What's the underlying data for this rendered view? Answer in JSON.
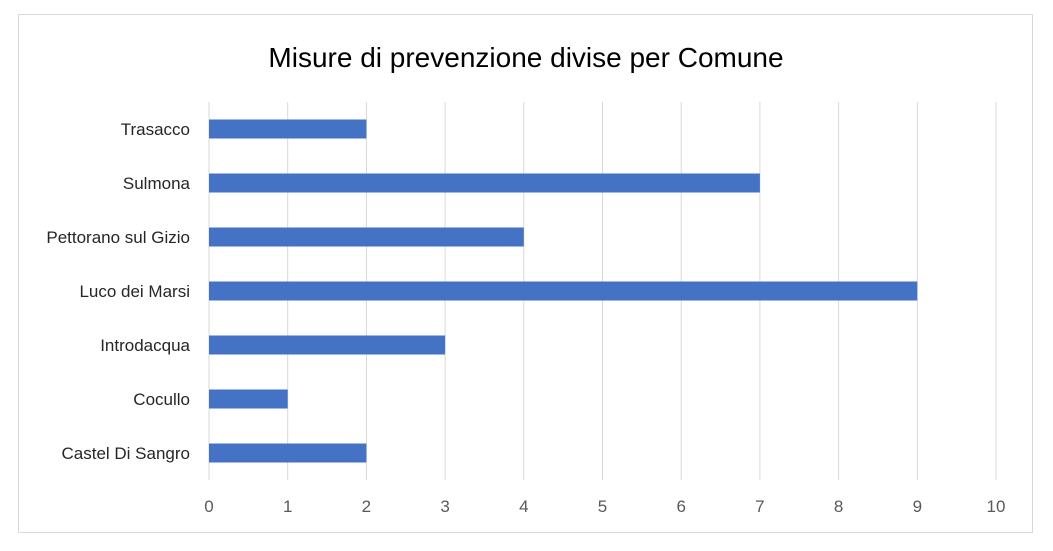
{
  "chart_data": {
    "type": "bar",
    "orientation": "horizontal",
    "title": "Misure di prevenzione divise per Comune",
    "categories": [
      "Castel Di Sangro",
      "Cocullo",
      "Introdacqua",
      "Luco dei Marsi",
      "Pettorano sul Gizio",
      "Sulmona",
      "Trasacco"
    ],
    "values": [
      2,
      1,
      3,
      9,
      4,
      7,
      2
    ],
    "xlim": [
      0,
      10
    ],
    "xticks": [
      "0",
      "1",
      "2",
      "3",
      "4",
      "5",
      "6",
      "7",
      "8",
      "9",
      "10"
    ],
    "grid": "vertical",
    "legend": "none",
    "bar_color": "#4472C4",
    "grid_color": "#d9d9d9"
  }
}
